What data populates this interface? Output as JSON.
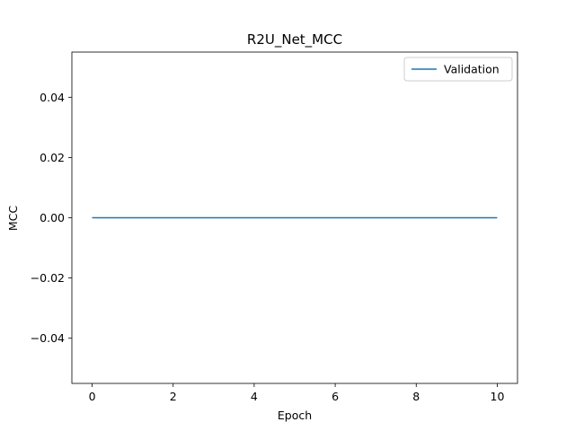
{
  "chart_data": {
    "type": "line",
    "title": "R2U_Net_MCC",
    "xlabel": "Epoch",
    "ylabel": "MCC",
    "xlim": [
      -0.5,
      10.5
    ],
    "ylim": [
      -0.055,
      0.055
    ],
    "xticks": [
      0,
      2,
      4,
      6,
      8,
      10
    ],
    "xtick_labels": [
      "0",
      "2",
      "4",
      "6",
      "8",
      "10"
    ],
    "yticks": [
      -0.04,
      -0.02,
      0.0,
      0.02,
      0.04
    ],
    "ytick_labels": [
      "−0.04",
      "−0.02",
      "0.00",
      "0.02",
      "0.04"
    ],
    "grid": false,
    "legend_position": "top-right",
    "series": [
      {
        "name": "Validation",
        "color": "#1f77b4",
        "x": [
          0,
          1,
          2,
          3,
          4,
          5,
          6,
          7,
          8,
          9,
          10
        ],
        "y": [
          0,
          0,
          0,
          0,
          0,
          0,
          0,
          0,
          0,
          0,
          0
        ]
      }
    ]
  }
}
